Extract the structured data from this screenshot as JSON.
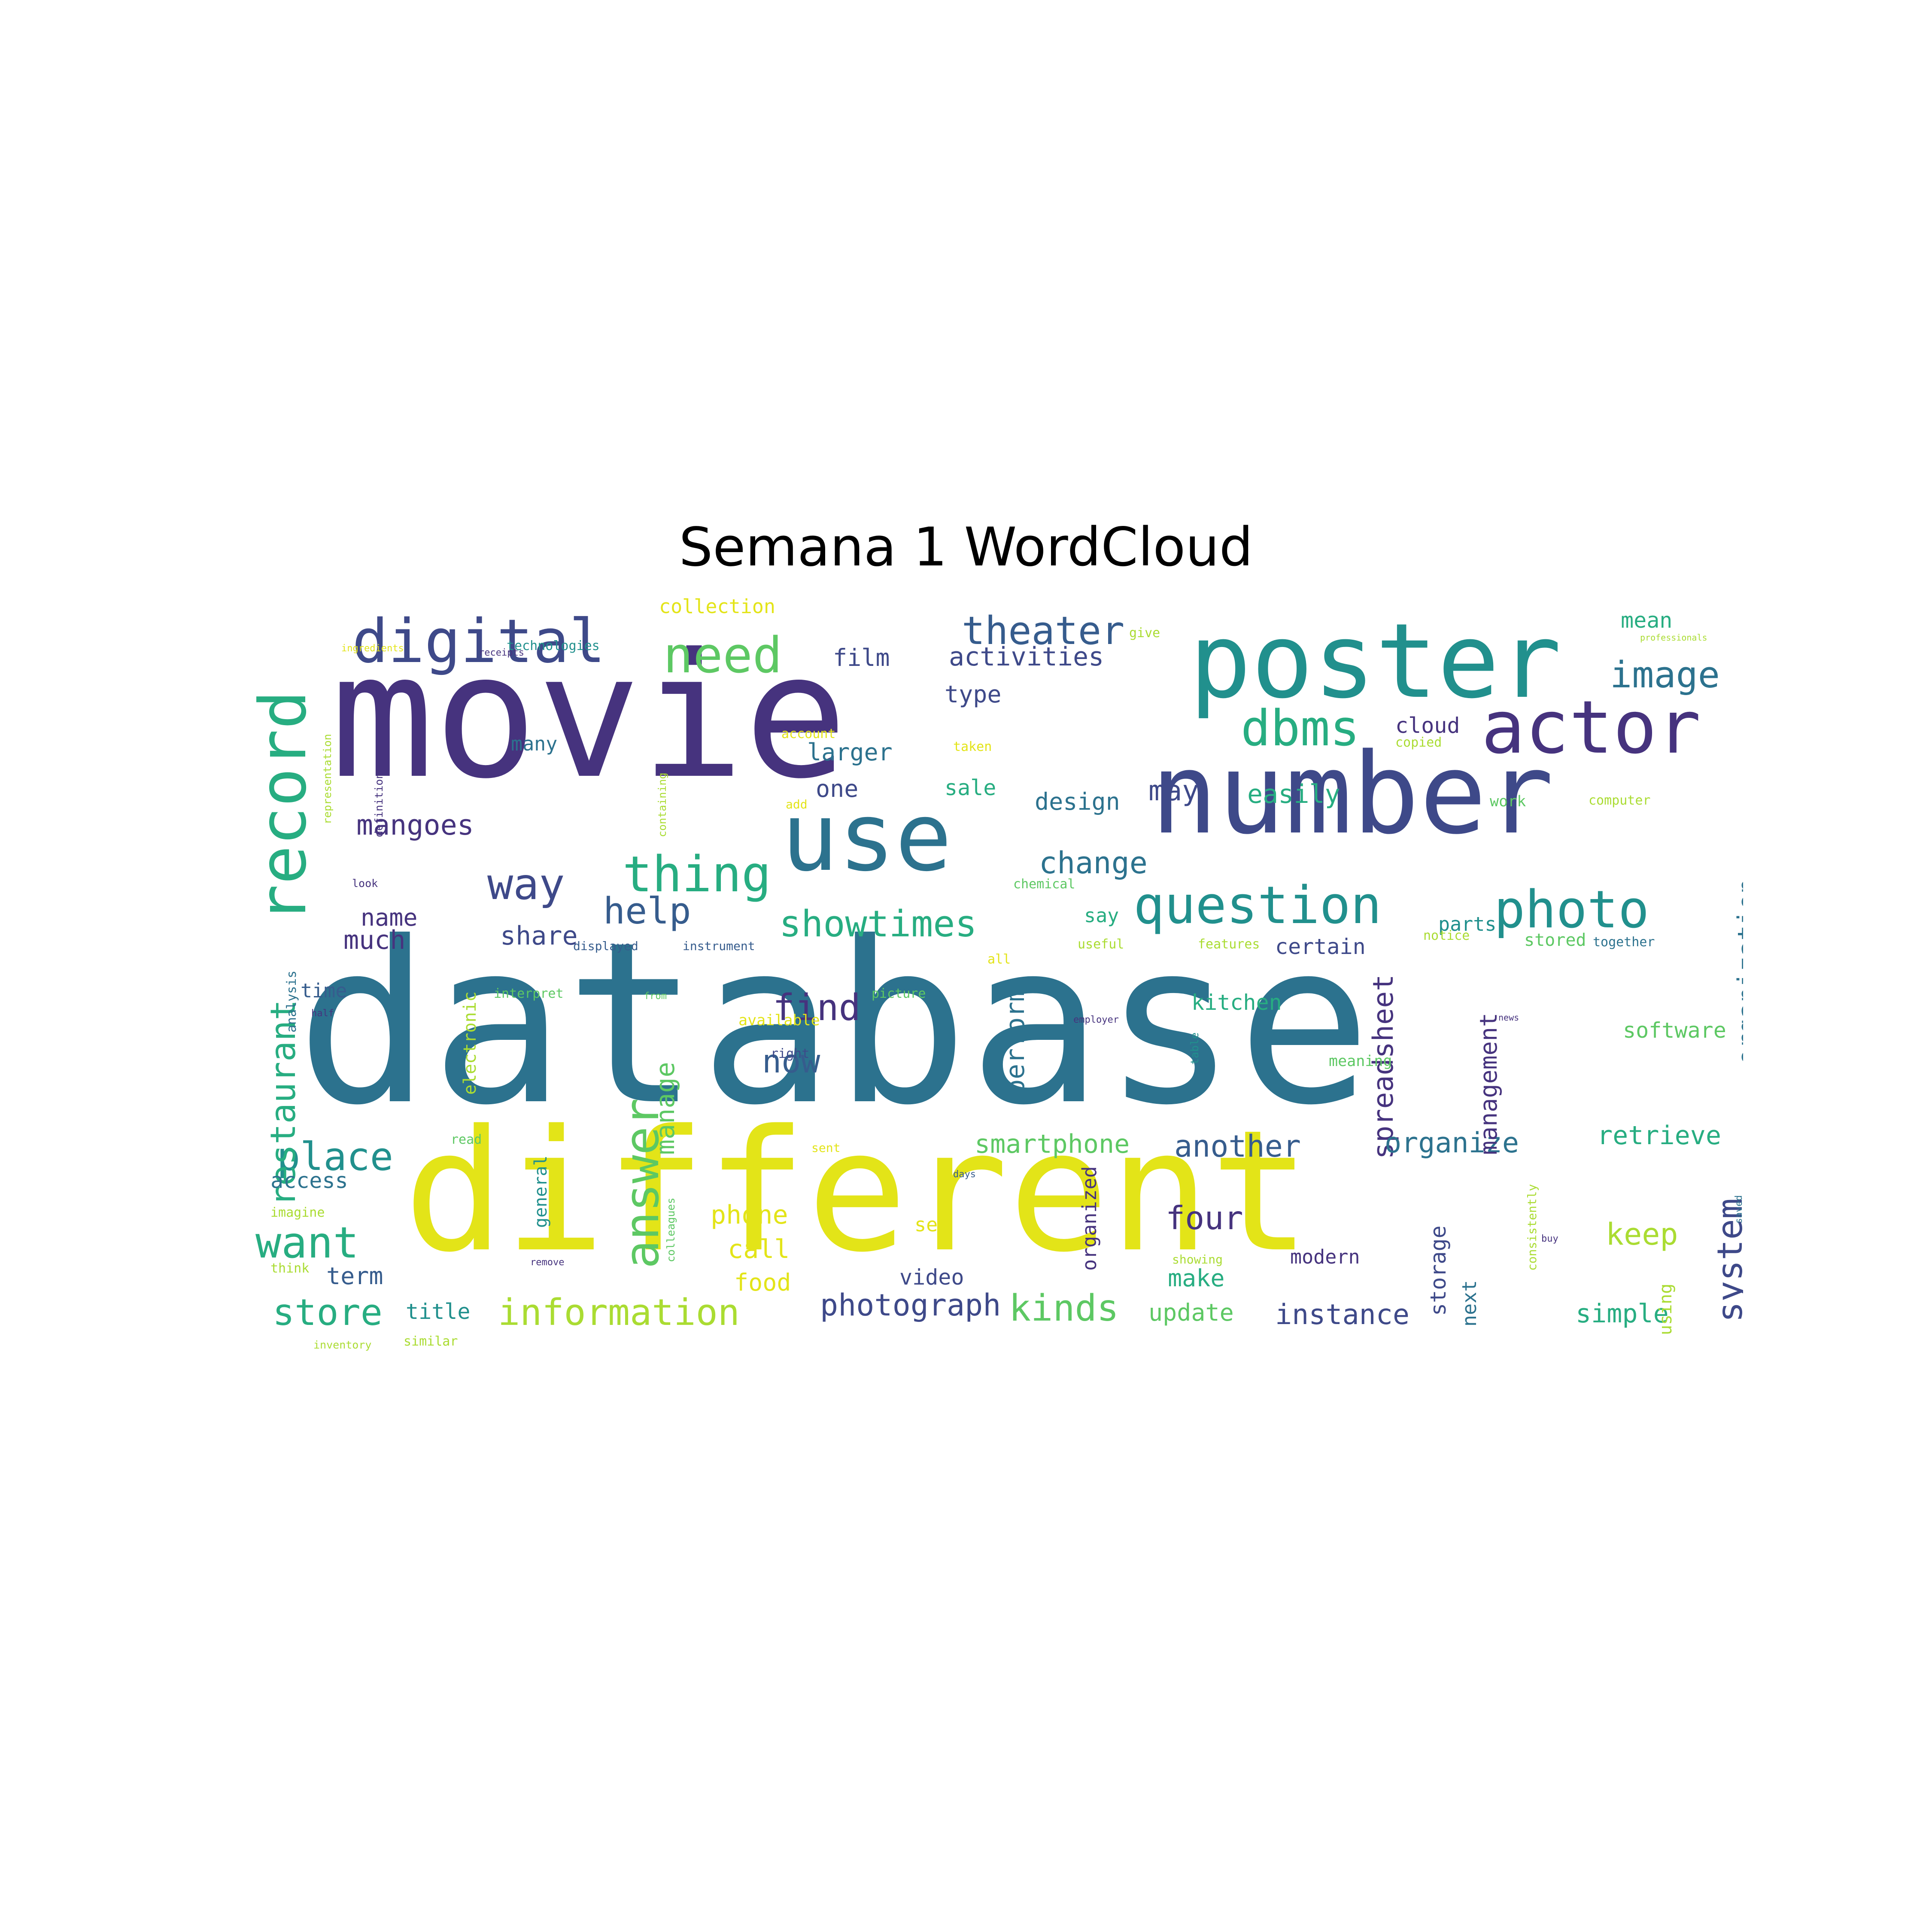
{
  "title": "Semana 1 WordCloud",
  "palette": {
    "dark_purple": "#46337e",
    "indigo": "#3e4989",
    "blue": "#365c8d",
    "slate": "#2c728e",
    "teal": "#21908d",
    "green": "#27ad81",
    "light_green": "#5dc863",
    "lime": "#aadc32",
    "yellow": "#e3e418",
    "background": "#ffffff"
  },
  "chart_data": {
    "type": "wordcloud",
    "words": [
      {
        "text": "database",
        "color": "#2c728e"
      },
      {
        "text": "movie",
        "color": "#46337e"
      },
      {
        "text": "different",
        "color": "#e3e418"
      },
      {
        "text": "number",
        "color": "#3e4989"
      },
      {
        "text": "poster",
        "color": "#21908d"
      },
      {
        "text": "use",
        "color": "#2c728e"
      },
      {
        "text": "record",
        "color": "#27ad81"
      },
      {
        "text": "actor",
        "color": "#46337e"
      },
      {
        "text": "digital",
        "color": "#3e4989"
      },
      {
        "text": "question",
        "color": "#21908d"
      },
      {
        "text": "photo",
        "color": "#21908d"
      },
      {
        "text": "dbms",
        "color": "#27ad81"
      },
      {
        "text": "need",
        "color": "#5dc863"
      },
      {
        "text": "thing",
        "color": "#27ad81"
      },
      {
        "text": "answer",
        "color": "#5dc863"
      },
      {
        "text": "way",
        "color": "#3e4989"
      },
      {
        "text": "theater",
        "color": "#365c8d"
      },
      {
        "text": "image",
        "color": "#2c728e"
      },
      {
        "text": "showtimes",
        "color": "#27ad81"
      },
      {
        "text": "information",
        "color": "#aadc32"
      },
      {
        "text": "want",
        "color": "#27ad81"
      },
      {
        "text": "place",
        "color": "#21908d"
      },
      {
        "text": "restaurant",
        "color": "#27ad81"
      },
      {
        "text": "store",
        "color": "#27ad81"
      },
      {
        "text": "find",
        "color": "#46337e"
      },
      {
        "text": "help",
        "color": "#365c8d"
      },
      {
        "text": "system",
        "color": "#3e4989"
      },
      {
        "text": "kinds",
        "color": "#5dc863"
      },
      {
        "text": "photograph",
        "color": "#3e4989"
      },
      {
        "text": "four",
        "color": "#46337e"
      },
      {
        "text": "spreadsheet",
        "color": "#46337e"
      },
      {
        "text": "now",
        "color": "#365c8d"
      },
      {
        "text": "organization",
        "color": "#2c728e"
      },
      {
        "text": "mangoes",
        "color": "#46337e"
      },
      {
        "text": "activities",
        "color": "#3e4989"
      },
      {
        "text": "change",
        "color": "#2c728e"
      },
      {
        "text": "another",
        "color": "#365c8d"
      },
      {
        "text": "organize",
        "color": "#2c728e"
      },
      {
        "text": "instance",
        "color": "#3e4989"
      },
      {
        "text": "manage",
        "color": "#5dc863"
      },
      {
        "text": "keep",
        "color": "#aadc32"
      },
      {
        "text": "retrieve",
        "color": "#27ad81"
      },
      {
        "text": "simple",
        "color": "#27ad81"
      },
      {
        "text": "smartphone",
        "color": "#5dc863"
      },
      {
        "text": "management",
        "color": "#46337e"
      },
      {
        "text": "perform",
        "color": "#2c728e"
      },
      {
        "text": "easily",
        "color": "#27ad81"
      },
      {
        "text": "may",
        "color": "#3e4989"
      },
      {
        "text": "share",
        "color": "#3e4989"
      },
      {
        "text": "much",
        "color": "#46337e"
      },
      {
        "text": "name",
        "color": "#46337e"
      },
      {
        "text": "phone",
        "color": "#e3e418"
      },
      {
        "text": "call",
        "color": "#e3e418"
      },
      {
        "text": "food",
        "color": "#e3e418"
      },
      {
        "text": "make",
        "color": "#27ad81"
      },
      {
        "text": "update",
        "color": "#5dc863"
      },
      {
        "text": "term",
        "color": "#365c8d"
      },
      {
        "text": "title",
        "color": "#21908d"
      },
      {
        "text": "access",
        "color": "#2c728e"
      },
      {
        "text": "software",
        "color": "#5dc863"
      },
      {
        "text": "storage",
        "color": "#3e4989"
      },
      {
        "text": "design",
        "color": "#2c728e"
      },
      {
        "text": "larger",
        "color": "#2c728e"
      },
      {
        "text": "one",
        "color": "#3e4989"
      },
      {
        "text": "type",
        "color": "#3e4989"
      },
      {
        "text": "sale",
        "color": "#27ad81"
      },
      {
        "text": "film",
        "color": "#3e4989"
      },
      {
        "text": "cloud",
        "color": "#46337e"
      },
      {
        "text": "mean",
        "color": "#27ad81"
      },
      {
        "text": "certain",
        "color": "#3e4989"
      },
      {
        "text": "parts",
        "color": "#21908d"
      },
      {
        "text": "stored",
        "color": "#5dc863"
      },
      {
        "text": "kitchen",
        "color": "#27ad81"
      },
      {
        "text": "video",
        "color": "#3e4989"
      },
      {
        "text": "modern",
        "color": "#46337e"
      },
      {
        "text": "next",
        "color": "#2c728e"
      },
      {
        "text": "say",
        "color": "#27ad81"
      },
      {
        "text": "many",
        "color": "#2c728e"
      },
      {
        "text": "time",
        "color": "#365c8d"
      },
      {
        "text": "general",
        "color": "#21908d"
      },
      {
        "text": "organized",
        "color": "#46337e"
      },
      {
        "text": "electronic",
        "color": "#aadc32"
      },
      {
        "text": "collection",
        "color": "#e3e418"
      },
      {
        "text": "set",
        "color": "#e3e418"
      },
      {
        "text": "using",
        "color": "#aadc32"
      },
      {
        "text": "together",
        "color": "#2c728e"
      },
      {
        "text": "useful",
        "color": "#aadc32"
      },
      {
        "text": "features",
        "color": "#aadc32"
      },
      {
        "text": "notice",
        "color": "#aadc32"
      },
      {
        "text": "work",
        "color": "#5dc863"
      },
      {
        "text": "computer",
        "color": "#aadc32"
      },
      {
        "text": "copied",
        "color": "#aadc32"
      },
      {
        "text": "taken",
        "color": "#e3e418"
      },
      {
        "text": "account",
        "color": "#e3e418"
      },
      {
        "text": "give",
        "color": "#aadc32"
      },
      {
        "text": "technologies",
        "color": "#21908d"
      },
      {
        "text": "ingredients",
        "color": "#e3e418"
      },
      {
        "text": "receipts",
        "color": "#46337e"
      },
      {
        "text": "representation",
        "color": "#aadc32"
      },
      {
        "text": "definition",
        "color": "#46337e"
      },
      {
        "text": "containing",
        "color": "#aadc32"
      },
      {
        "text": "add",
        "color": "#e3e418"
      },
      {
        "text": "displayed",
        "color": "#365c8d"
      },
      {
        "text": "instrument",
        "color": "#365c8d"
      },
      {
        "text": "look",
        "color": "#46337e"
      },
      {
        "text": "chemical",
        "color": "#5dc863"
      },
      {
        "text": "interpret",
        "color": "#5dc863"
      },
      {
        "text": "picture",
        "color": "#5dc863"
      },
      {
        "text": "available",
        "color": "#e3e418"
      },
      {
        "text": "right",
        "color": "#3e4989"
      },
      {
        "text": "analysis",
        "color": "#2c728e"
      },
      {
        "text": "half",
        "color": "#46337e"
      },
      {
        "text": "read",
        "color": "#5dc863"
      },
      {
        "text": "imagine",
        "color": "#aadc32"
      },
      {
        "text": "think",
        "color": "#aadc32"
      },
      {
        "text": "colleagues",
        "color": "#5dc863"
      },
      {
        "text": "remove",
        "color": "#46337e"
      },
      {
        "text": "similar",
        "color": "#aadc32"
      },
      {
        "text": "inventory",
        "color": "#aadc32"
      },
      {
        "text": "sent",
        "color": "#e3e418"
      },
      {
        "text": "days",
        "color": "#365c8d"
      },
      {
        "text": "employer",
        "color": "#46337e"
      },
      {
        "text": "meaning",
        "color": "#5dc863"
      },
      {
        "text": "table",
        "color": "#21908d"
      },
      {
        "text": "showing",
        "color": "#aadc32"
      },
      {
        "text": "consistently",
        "color": "#aadc32"
      },
      {
        "text": "buy",
        "color": "#46337e"
      },
      {
        "text": "saved",
        "color": "#2c728e"
      },
      {
        "text": "professionals",
        "color": "#aadc32"
      },
      {
        "text": "all",
        "color": "#e3e418"
      },
      {
        "text": "from",
        "color": "#5dc863"
      },
      {
        "text": "news",
        "color": "#46337e"
      }
    ]
  }
}
